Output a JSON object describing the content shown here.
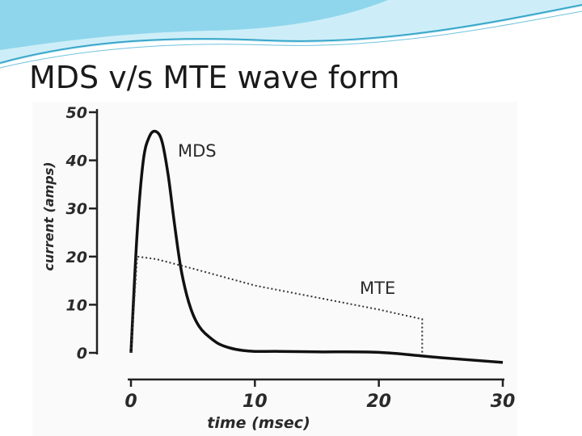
{
  "slide": {
    "title": "MDS v/s MTE wave form"
  },
  "colors": {
    "header_light": "#cdeef8",
    "header_mid": "#7fcfe8",
    "header_line": "#3aa6c9",
    "curve": "#111111"
  },
  "chart_data": {
    "type": "line",
    "title": "",
    "xlabel": "time (msec)",
    "ylabel": "current (amps)",
    "xlim": [
      0,
      30
    ],
    "ylim": [
      0,
      50
    ],
    "xticks": [
      0,
      10,
      20,
      30
    ],
    "yticks": [
      0,
      10,
      20,
      30,
      40,
      50
    ],
    "grid": false,
    "series": [
      {
        "name": "MDS",
        "style": "solid",
        "x": [
          0,
          0.5,
          1,
          1.5,
          2,
          2.5,
          3,
          3.5,
          4,
          4.5,
          5,
          5.5,
          6,
          7,
          8,
          9,
          10,
          12,
          15,
          20,
          25,
          30
        ],
        "y": [
          0,
          25,
          40,
          45,
          46,
          44,
          37,
          27,
          18,
          12,
          8,
          5.5,
          4,
          2,
          1,
          0.5,
          0.3,
          0.3,
          0.2,
          0.1,
          -1,
          -2
        ]
      },
      {
        "name": "MTE",
        "style": "dotted",
        "x": [
          0,
          0.5,
          2,
          5,
          10,
          15,
          20,
          23.5,
          23.5
        ],
        "y": [
          0,
          20,
          19.5,
          17.5,
          14,
          11.5,
          9,
          7,
          0
        ]
      }
    ]
  }
}
